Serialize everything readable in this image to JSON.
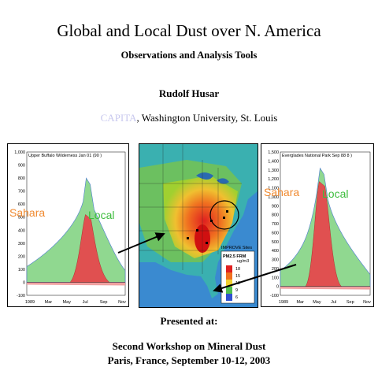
{
  "slide": {
    "title": "Global and Local Dust over N. America",
    "subtitle": "Observations and Analysis Tools",
    "author": "Rudolf Husar",
    "affiliation_org": "CAPITA",
    "affiliation_rest": ", Washington University, St. Louis",
    "presented_label": "Presented at:",
    "event_name": "Second Workshop on Mineral Dust",
    "event_place_date": "Paris, France, September 10-12, 2003"
  },
  "left_chart": {
    "site_label": "Upper Buffalo Wilderness Jan 01 (90 )",
    "sahara_label": "Sahara",
    "local_label": "Local",
    "y_ticks": [
      "1,000",
      "900",
      "800",
      "700",
      "600",
      "500",
      "400",
      "300",
      "200",
      "100",
      "0",
      "-100"
    ],
    "x_ticks": [
      "1989",
      "Mar",
      "May",
      "Jul",
      "Sep",
      "Nov"
    ],
    "colors": {
      "sahara": "#e05050",
      "local": "#90d890",
      "sahara_text": "#f08a30",
      "local_text": "#3cbc3c"
    }
  },
  "right_chart": {
    "site_label": "Everglades National Park Sep 88 8 )",
    "sahara_label": "Sahara",
    "local_label": "Local",
    "y_ticks": [
      "1,500",
      "1,400",
      "1,300",
      "1,200",
      "1,100",
      "1,000",
      "900",
      "800",
      "700",
      "600",
      "500",
      "400",
      "300",
      "200",
      "100",
      "0",
      "-100"
    ],
    "x_ticks": [
      "1989",
      "Mar",
      "May",
      "Jul",
      "Sep",
      "Nov"
    ],
    "colors": {
      "sahara": "#e05050",
      "local": "#90d890",
      "sahara_text": "#f08a30",
      "local_text": "#3cbc3c"
    }
  },
  "map": {
    "legend_title": "PM2.5 FRM",
    "legend_unit": "ug/m3",
    "legend_values": [
      "18",
      "15",
      "12",
      "9",
      "6"
    ],
    "legend_note": "IMPROVE Sites"
  }
}
